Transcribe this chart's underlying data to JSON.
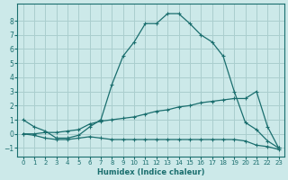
{
  "xlabel": "Humidex (Indice chaleur)",
  "background_color": "#cce9e9",
  "grid_color": "#aacece",
  "line_color": "#1a6e6e",
  "xlim": [
    -0.5,
    23.5
  ],
  "ylim": [
    -1.6,
    9.2
  ],
  "xticks": [
    0,
    1,
    2,
    3,
    4,
    5,
    6,
    7,
    8,
    9,
    10,
    11,
    12,
    13,
    14,
    15,
    16,
    17,
    18,
    19,
    20,
    21,
    22,
    23
  ],
  "yticks": [
    -1,
    0,
    1,
    2,
    3,
    4,
    5,
    6,
    7,
    8
  ],
  "line1_x": [
    0,
    1,
    2,
    3,
    4,
    5,
    6,
    7,
    8,
    9,
    10,
    11,
    12,
    13,
    14,
    15,
    16,
    17,
    18,
    19,
    20,
    21,
    22,
    23
  ],
  "line1_y": [
    1.0,
    0.5,
    0.2,
    -0.3,
    -0.3,
    -0.1,
    0.5,
    1.0,
    3.5,
    5.5,
    6.5,
    7.8,
    7.8,
    8.5,
    8.5,
    7.8,
    7.0,
    6.5,
    5.5,
    3.0,
    0.8,
    0.3,
    -0.5,
    -1.0
  ],
  "line2_x": [
    0,
    1,
    2,
    3,
    4,
    5,
    6,
    7,
    8,
    9,
    10,
    11,
    12,
    13,
    14,
    15,
    16,
    17,
    18,
    19,
    20,
    21,
    22,
    23
  ],
  "line2_y": [
    0.0,
    0.0,
    0.1,
    0.1,
    0.2,
    0.3,
    0.7,
    0.9,
    1.0,
    1.1,
    1.2,
    1.4,
    1.6,
    1.7,
    1.9,
    2.0,
    2.2,
    2.3,
    2.4,
    2.5,
    2.5,
    3.0,
    0.5,
    -1.0
  ],
  "line3_x": [
    0,
    1,
    2,
    3,
    4,
    5,
    6,
    7,
    8,
    9,
    10,
    11,
    12,
    13,
    14,
    15,
    16,
    17,
    18,
    19,
    20,
    21,
    22,
    23
  ],
  "line3_y": [
    0.0,
    -0.1,
    -0.3,
    -0.4,
    -0.4,
    -0.3,
    -0.2,
    -0.3,
    -0.4,
    -0.4,
    -0.4,
    -0.4,
    -0.4,
    -0.4,
    -0.4,
    -0.4,
    -0.4,
    -0.4,
    -0.4,
    -0.4,
    -0.5,
    -0.8,
    -0.9,
    -1.1
  ]
}
